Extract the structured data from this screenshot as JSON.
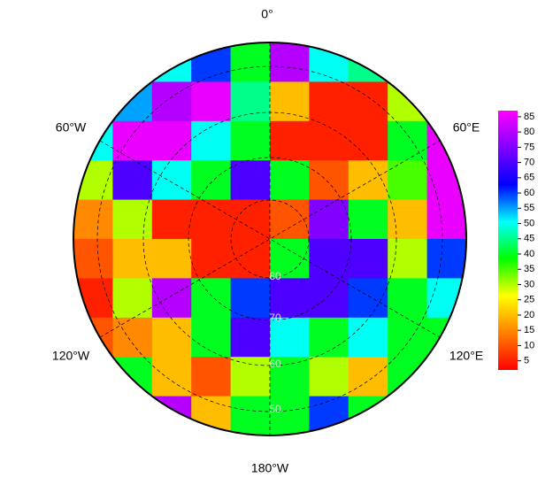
{
  "chart_data": {
    "type": "heatmap",
    "values": [
      [
        40,
        40,
        50,
        60,
        40,
        80,
        50,
        45,
        40,
        40
      ],
      [
        60,
        55,
        80,
        85,
        45,
        20,
        5,
        5,
        30,
        50
      ],
      [
        50,
        85,
        85,
        50,
        40,
        5,
        5,
        5,
        40,
        85
      ],
      [
        30,
        70,
        50,
        40,
        70,
        40,
        10,
        20,
        35,
        85
      ],
      [
        15,
        30,
        5,
        5,
        5,
        10,
        75,
        40,
        20,
        85
      ],
      [
        10,
        20,
        20,
        5,
        5,
        40,
        70,
        70,
        30,
        60
      ],
      [
        5,
        30,
        80,
        40,
        60,
        70,
        70,
        60,
        40,
        50
      ],
      [
        10,
        15,
        20,
        40,
        70,
        50,
        40,
        50,
        40,
        40
      ],
      [
        30,
        40,
        20,
        10,
        30,
        40,
        30,
        20,
        40,
        40
      ],
      [
        40,
        40,
        80,
        20,
        40,
        40,
        60,
        40,
        40,
        40
      ]
    ],
    "clim": [
      2,
      87
    ],
    "colorbar_ticks": [
      5,
      10,
      15,
      20,
      25,
      30,
      35,
      40,
      45,
      50,
      55,
      60,
      65,
      70,
      75,
      80,
      85
    ],
    "colormap": [
      "#ff0000",
      "#ff8000",
      "#ffff00",
      "#00ff00",
      "#00ffff",
      "#0000ff",
      "#8000ff",
      "#ff00ff"
    ],
    "meridian_labels": [
      "0°",
      "60°E",
      "120°E",
      "180°W",
      "120°W",
      "60°W"
    ],
    "latitude_labels": [
      "80",
      "70",
      "60",
      "50"
    ]
  }
}
